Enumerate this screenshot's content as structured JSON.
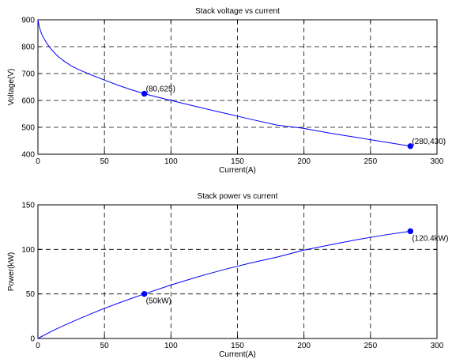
{
  "chart_data": [
    {
      "type": "line",
      "title": "Stack voltage vs current",
      "xlabel": "Current(A)",
      "ylabel": "Voltage(V)",
      "xlim": [
        0,
        300
      ],
      "ylim": [
        400,
        900
      ],
      "xticks": [
        0,
        50,
        100,
        150,
        200,
        250,
        300
      ],
      "yticks": [
        400,
        500,
        600,
        700,
        800,
        900
      ],
      "grid": true,
      "color": "#0000ff",
      "x": [
        0,
        1,
        2,
        3,
        5,
        7,
        10,
        15,
        20,
        25,
        30,
        40,
        50,
        60,
        70,
        80,
        90,
        100,
        120,
        140,
        160,
        180,
        200,
        220,
        240,
        260,
        280
      ],
      "y": [
        900,
        875,
        858,
        845,
        826,
        810,
        790,
        764,
        745,
        729,
        716,
        695,
        676,
        657,
        640,
        625,
        612,
        600,
        576,
        553,
        530,
        508,
        496,
        478,
        462,
        446,
        430
      ],
      "markers": [
        {
          "x": 80,
          "y": 625,
          "label": "(80,625)"
        },
        {
          "x": 280,
          "y": 430,
          "label": "(280,430)"
        }
      ]
    },
    {
      "type": "line",
      "title": "Stack power vs current",
      "xlabel": "Current(A)",
      "ylabel": "Power(kW)",
      "xlim": [
        0,
        300
      ],
      "ylim": [
        0,
        150
      ],
      "xticks": [
        0,
        50,
        100,
        150,
        200,
        250,
        300
      ],
      "yticks": [
        0,
        50,
        100,
        150
      ],
      "grid": true,
      "color": "#0000ff",
      "x": [
        0,
        10,
        20,
        30,
        40,
        50,
        60,
        70,
        80,
        100,
        120,
        140,
        160,
        180,
        200,
        220,
        240,
        260,
        280
      ],
      "y": [
        0,
        7.9,
        14.9,
        21.5,
        27.8,
        33.8,
        39.4,
        44.8,
        50,
        60,
        69.1,
        77.4,
        84.8,
        91.4,
        99.2,
        105.2,
        110.9,
        116,
        120.4
      ],
      "markers": [
        {
          "x": 80,
          "y": 50,
          "label": "(50kW)"
        },
        {
          "x": 280,
          "y": 120.4,
          "label": "(120.4kW)"
        }
      ]
    }
  ]
}
